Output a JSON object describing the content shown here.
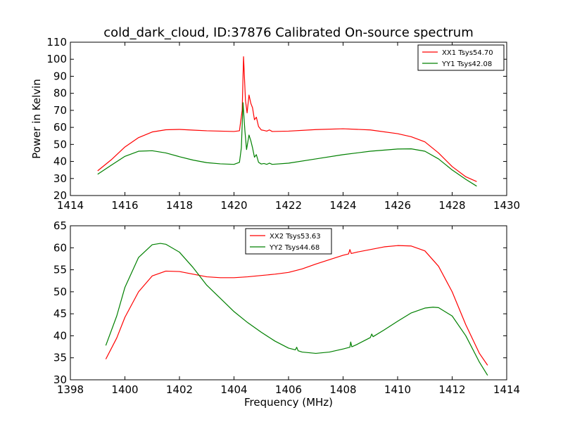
{
  "chart_data": [
    {
      "type": "line",
      "title": "cold_dark_cloud, ID:37876 Calibrated On-source spectrum",
      "xlabel": "",
      "ylabel": "Power in Kelvin",
      "xlim": [
        1414,
        1430
      ],
      "ylim": [
        20,
        110
      ],
      "xticks": [
        1414,
        1416,
        1418,
        1420,
        1422,
        1424,
        1426,
        1428,
        1430
      ],
      "yticks": [
        20,
        30,
        40,
        50,
        60,
        70,
        80,
        90,
        100,
        110
      ],
      "grid": false,
      "legend_position": "top-right",
      "series": [
        {
          "name": "XX1 Tsys54.70",
          "color": "#ff0000",
          "points": [
            [
              1415.0,
              34.5
            ],
            [
              1415.5,
              41
            ],
            [
              1416.0,
              48.5
            ],
            [
              1416.5,
              54
            ],
            [
              1417.0,
              57.3
            ],
            [
              1417.5,
              58.6
            ],
            [
              1418.0,
              58.8
            ],
            [
              1418.5,
              58.4
            ],
            [
              1419.0,
              58.0
            ],
            [
              1419.5,
              57.8
            ],
            [
              1420.0,
              57.6
            ],
            [
              1420.2,
              58.0
            ],
            [
              1420.3,
              70.0
            ],
            [
              1420.35,
              101.5
            ],
            [
              1420.42,
              76.0
            ],
            [
              1420.48,
              68.5
            ],
            [
              1420.55,
              79.0
            ],
            [
              1420.62,
              74.0
            ],
            [
              1420.68,
              71.5
            ],
            [
              1420.75,
              64.5
            ],
            [
              1420.82,
              66.0
            ],
            [
              1420.9,
              60.5
            ],
            [
              1421.0,
              58.5
            ],
            [
              1421.1,
              58.2
            ],
            [
              1421.2,
              57.8
            ],
            [
              1421.3,
              58.5
            ],
            [
              1421.4,
              57.6
            ],
            [
              1422.0,
              57.8
            ],
            [
              1423.0,
              58.7
            ],
            [
              1424.0,
              59.2
            ],
            [
              1425.0,
              58.5
            ],
            [
              1426.0,
              56.3
            ],
            [
              1426.5,
              54.5
            ],
            [
              1427.0,
              51.5
            ],
            [
              1427.5,
              45.0
            ],
            [
              1428.0,
              37.0
            ],
            [
              1428.5,
              31.0
            ],
            [
              1428.9,
              28.2
            ]
          ]
        },
        {
          "name": "YY1 Tsys42.08",
          "color": "#008000",
          "points": [
            [
              1415.0,
              32.5
            ],
            [
              1415.5,
              37.8
            ],
            [
              1416.0,
              43.0
            ],
            [
              1416.5,
              46.0
            ],
            [
              1417.0,
              46.3
            ],
            [
              1417.5,
              45.0
            ],
            [
              1418.0,
              42.8
            ],
            [
              1418.5,
              40.8
            ],
            [
              1419.0,
              39.3
            ],
            [
              1419.5,
              38.6
            ],
            [
              1420.0,
              38.3
            ],
            [
              1420.2,
              39.5
            ],
            [
              1420.27,
              48.0
            ],
            [
              1420.33,
              74.5
            ],
            [
              1420.4,
              58.0
            ],
            [
              1420.46,
              47.0
            ],
            [
              1420.55,
              55.5
            ],
            [
              1420.62,
              52.0
            ],
            [
              1420.68,
              48.0
            ],
            [
              1420.75,
              42.5
            ],
            [
              1420.82,
              44.0
            ],
            [
              1420.9,
              39.5
            ],
            [
              1421.0,
              38.5
            ],
            [
              1421.1,
              38.8
            ],
            [
              1421.2,
              38.3
            ],
            [
              1421.3,
              39.0
            ],
            [
              1421.4,
              38.3
            ],
            [
              1422.0,
              39.0
            ],
            [
              1423.0,
              41.5
            ],
            [
              1424.0,
              44.0
            ],
            [
              1425.0,
              46.0
            ],
            [
              1426.0,
              47.3
            ],
            [
              1426.5,
              47.4
            ],
            [
              1427.0,
              46.0
            ],
            [
              1427.5,
              41.5
            ],
            [
              1428.0,
              35.0
            ],
            [
              1428.5,
              29.5
            ],
            [
              1428.9,
              25.5
            ]
          ]
        }
      ]
    },
    {
      "type": "line",
      "title": "",
      "xlabel": "Frequency (MHz)",
      "ylabel": "",
      "xlim": [
        1398,
        1414
      ],
      "ylim": [
        30,
        65
      ],
      "xticks": [
        1398,
        1400,
        1402,
        1404,
        1406,
        1408,
        1410,
        1412,
        1414
      ],
      "yticks": [
        30,
        35,
        40,
        45,
        50,
        55,
        60,
        65
      ],
      "grid": false,
      "legend_position": "top-center",
      "series": [
        {
          "name": "XX2 Tsys53.63",
          "color": "#ff0000",
          "points": [
            [
              1399.3,
              34.7
            ],
            [
              1399.7,
              39.5
            ],
            [
              1400.0,
              44.2
            ],
            [
              1400.5,
              50.0
            ],
            [
              1401.0,
              53.6
            ],
            [
              1401.5,
              54.7
            ],
            [
              1402.0,
              54.6
            ],
            [
              1402.5,
              54.0
            ],
            [
              1403.0,
              53.4
            ],
            [
              1403.5,
              53.2
            ],
            [
              1404.0,
              53.2
            ],
            [
              1404.5,
              53.4
            ],
            [
              1405.0,
              53.7
            ],
            [
              1405.5,
              54.0
            ],
            [
              1406.0,
              54.4
            ],
            [
              1406.5,
              55.2
            ],
            [
              1407.0,
              56.3
            ],
            [
              1407.5,
              57.3
            ],
            [
              1408.0,
              58.3
            ],
            [
              1408.2,
              58.6
            ],
            [
              1408.25,
              59.6
            ],
            [
              1408.3,
              58.7
            ],
            [
              1408.5,
              59.0
            ],
            [
              1409.0,
              59.6
            ],
            [
              1409.5,
              60.2
            ],
            [
              1410.0,
              60.5
            ],
            [
              1410.5,
              60.4
            ],
            [
              1411.0,
              59.3
            ],
            [
              1411.5,
              55.8
            ],
            [
              1412.0,
              50.0
            ],
            [
              1412.5,
              42.5
            ],
            [
              1413.0,
              36.0
            ],
            [
              1413.3,
              33.3
            ]
          ]
        },
        {
          "name": "YY2 Tsys44.68",
          "color": "#008000",
          "points": [
            [
              1399.3,
              37.8
            ],
            [
              1399.7,
              44.5
            ],
            [
              1400.0,
              51.0
            ],
            [
              1400.5,
              57.8
            ],
            [
              1401.0,
              60.7
            ],
            [
              1401.3,
              61.0
            ],
            [
              1401.5,
              60.8
            ],
            [
              1402.0,
              59.0
            ],
            [
              1402.5,
              55.5
            ],
            [
              1403.0,
              51.5
            ],
            [
              1403.5,
              48.5
            ],
            [
              1404.0,
              45.5
            ],
            [
              1404.5,
              43.0
            ],
            [
              1405.0,
              40.8
            ],
            [
              1405.5,
              38.8
            ],
            [
              1406.0,
              37.2
            ],
            [
              1406.25,
              36.8
            ],
            [
              1406.3,
              37.4
            ],
            [
              1406.35,
              36.6
            ],
            [
              1406.5,
              36.3
            ],
            [
              1407.0,
              36.0
            ],
            [
              1407.5,
              36.3
            ],
            [
              1408.0,
              37.0
            ],
            [
              1408.25,
              37.4
            ],
            [
              1408.28,
              38.6
            ],
            [
              1408.32,
              37.5
            ],
            [
              1408.5,
              38.0
            ],
            [
              1409.0,
              39.6
            ],
            [
              1409.05,
              40.4
            ],
            [
              1409.1,
              39.8
            ],
            [
              1409.5,
              41.3
            ],
            [
              1410.0,
              43.3
            ],
            [
              1410.5,
              45.2
            ],
            [
              1411.0,
              46.3
            ],
            [
              1411.3,
              46.5
            ],
            [
              1411.5,
              46.4
            ],
            [
              1412.0,
              44.5
            ],
            [
              1412.5,
              40.0
            ],
            [
              1413.0,
              34.0
            ],
            [
              1413.3,
              31.0
            ]
          ]
        }
      ]
    }
  ]
}
